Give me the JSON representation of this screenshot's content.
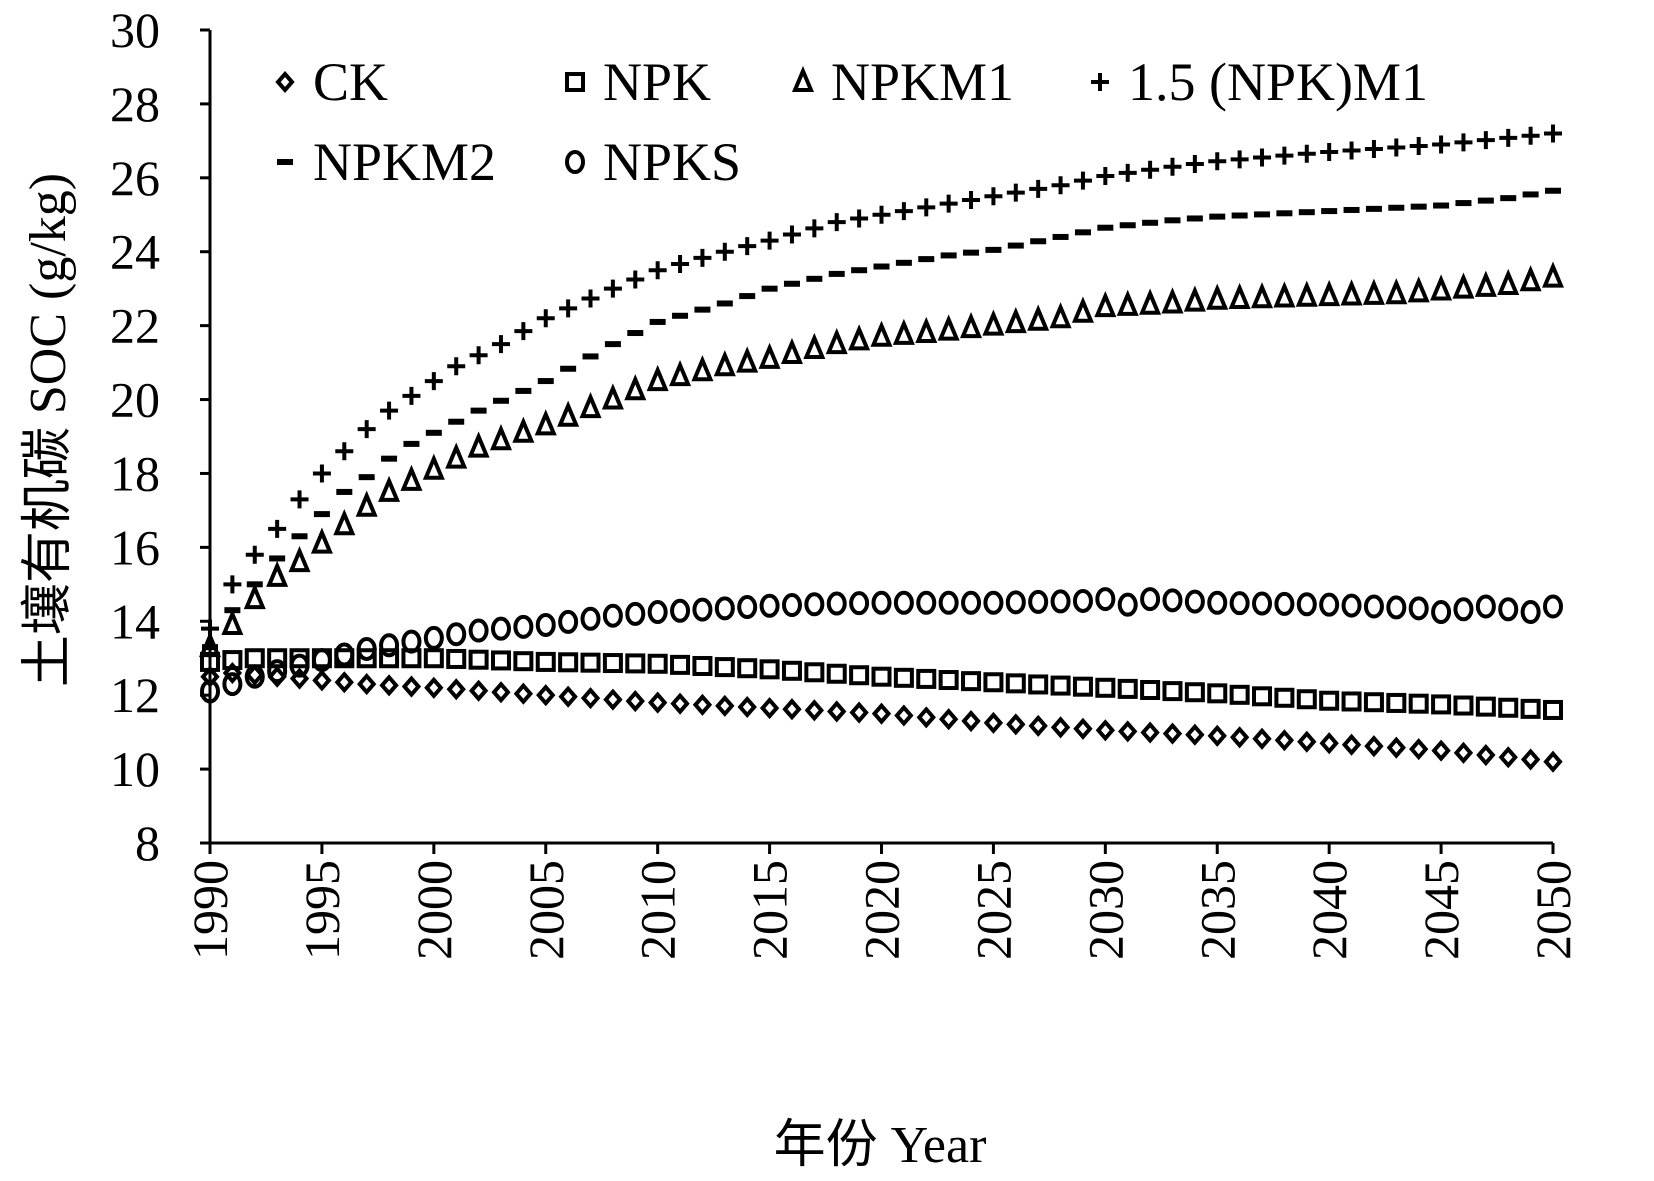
{
  "chart_data": {
    "type": "scatter",
    "title": "",
    "xlabel": "年份 Year",
    "ylabel": "土壤有机碳 SOC (g/kg)",
    "xlim": [
      1990,
      2050
    ],
    "ylim": [
      8,
      30
    ],
    "x_ticks": [
      "1990",
      "1995",
      "2000",
      "2005",
      "2010",
      "2015",
      "2020",
      "2025",
      "2030",
      "2035",
      "2040",
      "2045",
      "2050"
    ],
    "y_ticks": [
      "8",
      "10",
      "12",
      "14",
      "16",
      "18",
      "20",
      "22",
      "24",
      "26",
      "28",
      "30"
    ],
    "x_tick_values": [
      1990,
      1995,
      2000,
      2005,
      2010,
      2015,
      2020,
      2025,
      2030,
      2035,
      2040,
      2045,
      2050
    ],
    "y_tick_values": [
      8,
      10,
      12,
      14,
      16,
      18,
      20,
      22,
      24,
      26,
      28,
      30
    ],
    "legend_position": "top-left (inside plot, two rows)",
    "series": [
      {
        "name": "CK",
        "marker": "diamond",
        "anchors": [
          [
            1990,
            12.5
          ],
          [
            1991,
            12.6
          ],
          [
            1993,
            12.5
          ],
          [
            1995,
            12.4
          ],
          [
            1997,
            12.3
          ],
          [
            2000,
            12.2
          ],
          [
            2005,
            12.0
          ],
          [
            2010,
            11.8
          ],
          [
            2015,
            11.65
          ],
          [
            2020,
            11.5
          ],
          [
            2025,
            11.25
          ],
          [
            2030,
            11.05
          ],
          [
            2035,
            10.9
          ],
          [
            2040,
            10.7
          ],
          [
            2045,
            10.5
          ],
          [
            2050,
            10.2
          ]
        ]
      },
      {
        "name": "NPK",
        "marker": "square",
        "anchors": [
          [
            1990,
            12.9
          ],
          [
            1992,
            13.0
          ],
          [
            1995,
            13.0
          ],
          [
            2000,
            13.0
          ],
          [
            2005,
            12.9
          ],
          [
            2010,
            12.85
          ],
          [
            2015,
            12.7
          ],
          [
            2020,
            12.5
          ],
          [
            2025,
            12.35
          ],
          [
            2030,
            12.2
          ],
          [
            2035,
            12.05
          ],
          [
            2040,
            11.85
          ],
          [
            2045,
            11.75
          ],
          [
            2050,
            11.6
          ]
        ]
      },
      {
        "name": "NPKM1",
        "marker": "triangle",
        "anchors": [
          [
            1990,
            13.3
          ],
          [
            1991,
            13.9
          ],
          [
            1992,
            14.6
          ],
          [
            1993,
            15.2
          ],
          [
            1994,
            15.6
          ],
          [
            1995,
            16.1
          ],
          [
            1996,
            16.6
          ],
          [
            1997,
            17.1
          ],
          [
            1998,
            17.5
          ],
          [
            1999,
            17.8
          ],
          [
            2000,
            18.1
          ],
          [
            2002,
            18.7
          ],
          [
            2005,
            19.3
          ],
          [
            2008,
            20.0
          ],
          [
            2010,
            20.5
          ],
          [
            2013,
            20.9
          ],
          [
            2015,
            21.1
          ],
          [
            2018,
            21.5
          ],
          [
            2020,
            21.7
          ],
          [
            2022,
            21.8
          ],
          [
            2025,
            22.0
          ],
          [
            2028,
            22.2
          ],
          [
            2030,
            22.5
          ],
          [
            2033,
            22.6
          ],
          [
            2035,
            22.7
          ],
          [
            2040,
            22.8
          ],
          [
            2043,
            22.85
          ],
          [
            2045,
            22.95
          ],
          [
            2048,
            23.1
          ],
          [
            2050,
            23.3
          ]
        ]
      },
      {
        "name": "1.5 (NPK)M1",
        "marker": "plus",
        "anchors": [
          [
            1990,
            13.8
          ],
          [
            1991,
            15.0
          ],
          [
            1992,
            15.8
          ],
          [
            1993,
            16.5
          ],
          [
            1994,
            17.3
          ],
          [
            1995,
            18.0
          ],
          [
            1996,
            18.6
          ],
          [
            1997,
            19.2
          ],
          [
            1998,
            19.7
          ],
          [
            1999,
            20.1
          ],
          [
            2000,
            20.5
          ],
          [
            2001,
            20.9
          ],
          [
            2003,
            21.5
          ],
          [
            2005,
            22.2
          ],
          [
            2008,
            23.0
          ],
          [
            2010,
            23.5
          ],
          [
            2013,
            24.0
          ],
          [
            2015,
            24.3
          ],
          [
            2018,
            24.8
          ],
          [
            2020,
            25.0
          ],
          [
            2023,
            25.3
          ],
          [
            2025,
            25.5
          ],
          [
            2028,
            25.8
          ],
          [
            2030,
            26.05
          ],
          [
            2033,
            26.3
          ],
          [
            2035,
            26.45
          ],
          [
            2038,
            26.6
          ],
          [
            2040,
            26.7
          ],
          [
            2045,
            26.9
          ],
          [
            2050,
            27.2
          ]
        ]
      },
      {
        "name": "NPKM2",
        "marker": "dash",
        "anchors": [
          [
            1990,
            13.3
          ],
          [
            1991,
            14.3
          ],
          [
            1992,
            15.0
          ],
          [
            1993,
            15.7
          ],
          [
            1994,
            16.3
          ],
          [
            1995,
            16.9
          ],
          [
            1996,
            17.5
          ],
          [
            1997,
            17.9
          ],
          [
            1998,
            18.4
          ],
          [
            1999,
            18.8
          ],
          [
            2000,
            19.1
          ],
          [
            2002,
            19.7
          ],
          [
            2005,
            20.5
          ],
          [
            2008,
            21.5
          ],
          [
            2010,
            22.1
          ],
          [
            2013,
            22.6
          ],
          [
            2015,
            23.0
          ],
          [
            2018,
            23.4
          ],
          [
            2020,
            23.6
          ],
          [
            2023,
            23.9
          ],
          [
            2025,
            24.05
          ],
          [
            2028,
            24.4
          ],
          [
            2030,
            24.65
          ],
          [
            2033,
            24.85
          ],
          [
            2035,
            24.95
          ],
          [
            2040,
            25.1
          ],
          [
            2045,
            25.25
          ],
          [
            2048,
            25.45
          ],
          [
            2050,
            25.65
          ]
        ]
      },
      {
        "name": "NPKS",
        "marker": "circle",
        "anchors": [
          [
            1990,
            12.1
          ],
          [
            1991,
            12.3
          ],
          [
            1992,
            12.5
          ],
          [
            1993,
            12.65
          ],
          [
            1994,
            12.8
          ],
          [
            1995,
            12.95
          ],
          [
            1996,
            13.1
          ],
          [
            1997,
            13.25
          ],
          [
            1998,
            13.35
          ],
          [
            1999,
            13.45
          ],
          [
            2000,
            13.55
          ],
          [
            2002,
            13.75
          ],
          [
            2005,
            13.9
          ],
          [
            2008,
            14.15
          ],
          [
            2010,
            14.25
          ],
          [
            2013,
            14.35
          ],
          [
            2015,
            14.42
          ],
          [
            2018,
            14.48
          ],
          [
            2020,
            14.5
          ],
          [
            2025,
            14.5
          ],
          [
            2029,
            14.55
          ],
          [
            2030,
            14.6
          ],
          [
            2031,
            14.45
          ],
          [
            2032,
            14.6
          ],
          [
            2035,
            14.5
          ],
          [
            2040,
            14.45
          ],
          [
            2044,
            14.35
          ],
          [
            2045,
            14.25
          ],
          [
            2047,
            14.4
          ],
          [
            2049,
            14.25
          ],
          [
            2050,
            14.4
          ]
        ]
      }
    ]
  }
}
